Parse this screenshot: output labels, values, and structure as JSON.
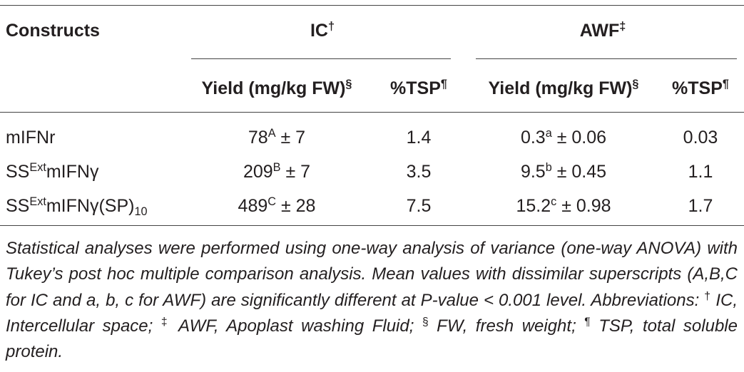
{
  "table": {
    "header": {
      "constructs": [
        {
          "text": "Constructs"
        }
      ],
      "groups": [
        [
          {
            "text": "IC"
          },
          {
            "sup": "†"
          }
        ],
        [
          {
            "text": "AWF"
          },
          {
            "sup": "‡"
          }
        ]
      ],
      "subheaders": [
        [
          {
            "text": "Yield (mg/kg FW)"
          },
          {
            "sup": "§"
          }
        ],
        [
          {
            "text": "%TSP"
          },
          {
            "sup": "¶"
          }
        ],
        [
          {
            "text": "Yield (mg/kg FW)"
          },
          {
            "sup": "§"
          }
        ],
        [
          {
            "text": "%TSP"
          },
          {
            "sup": "¶"
          }
        ]
      ]
    },
    "rows": [
      [
        [
          {
            "text": "mIFNr"
          }
        ],
        [
          {
            "text": "78"
          },
          {
            "sup": "A"
          },
          {
            "text": " ± 7"
          }
        ],
        [
          {
            "text": "1.4"
          }
        ],
        [
          {
            "text": "0.3"
          },
          {
            "sup": "a"
          },
          {
            "text": " ± 0.06"
          }
        ],
        [
          {
            "text": "0.03"
          }
        ]
      ],
      [
        [
          {
            "text": "SS"
          },
          {
            "sup": "Ext"
          },
          {
            "text": "mIFNγ"
          }
        ],
        [
          {
            "text": "209"
          },
          {
            "sup": "B"
          },
          {
            "text": " ± 7"
          }
        ],
        [
          {
            "text": "3.5"
          }
        ],
        [
          {
            "text": "9.5"
          },
          {
            "sup": "b"
          },
          {
            "text": " ± 0.45"
          }
        ],
        [
          {
            "text": "1.1"
          }
        ]
      ],
      [
        [
          {
            "text": "SS"
          },
          {
            "sup": "Ext"
          },
          {
            "text": "mIFNγ(SP)"
          },
          {
            "sub": "10"
          }
        ],
        [
          {
            "text": "489"
          },
          {
            "sup": "C"
          },
          {
            "text": " ± 28"
          }
        ],
        [
          {
            "text": "7.5"
          }
        ],
        [
          {
            "text": "15.2"
          },
          {
            "sup": "c"
          },
          {
            "text": " ± 0.98"
          }
        ],
        [
          {
            "text": "1.7"
          }
        ]
      ]
    ],
    "footnote": [
      {
        "text": "Statistical analyses were performed using one-way analysis of variance (one-way ANOVA) with Tukey’s post hoc multiple comparison analysis. Mean values with dissimilar superscripts (A,B,C for IC and a, b, c for AWF) are significantly different at P-value < 0.001 level. Abbreviations: "
      },
      {
        "sup": "†"
      },
      {
        "text": " IC, Intercellular space; "
      },
      {
        "sup": "‡"
      },
      {
        "text": " AWF, Apoplast washing Fluid; "
      },
      {
        "sup": "§"
      },
      {
        "text": " FW, fresh weight; "
      },
      {
        "sup": "¶"
      },
      {
        "text": " TSP, total soluble protein."
      }
    ]
  }
}
